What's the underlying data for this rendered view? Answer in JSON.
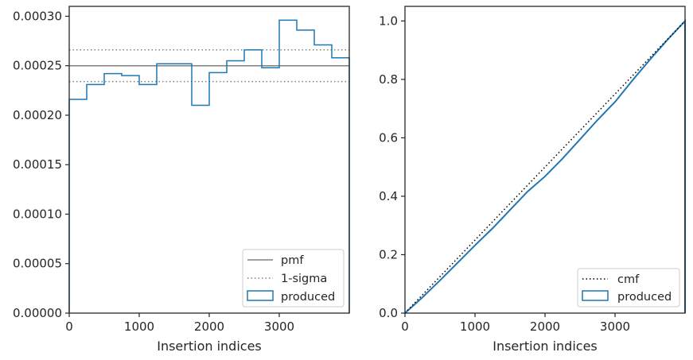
{
  "chart_data": [
    {
      "type": "histogram",
      "xlabel": "Insertion indices",
      "ylabel": "",
      "xlim": [
        0,
        4000
      ],
      "ylim": [
        0,
        0.00031
      ],
      "xticks": [
        "0",
        "1000",
        "2000",
        "3000"
      ],
      "xtick_values": [
        0,
        1000,
        2000,
        3000
      ],
      "yticks": [
        "0.00000",
        "0.00005",
        "0.00010",
        "0.00015",
        "0.00020",
        "0.00025",
        "0.00030"
      ],
      "ytick_values": [
        0,
        5e-05,
        0.0001,
        0.00015,
        0.0002,
        0.00025,
        0.0003
      ],
      "bin_edges": [
        0,
        250,
        500,
        750,
        1000,
        1250,
        1500,
        1750,
        2000,
        2250,
        2500,
        2750,
        3000,
        3250,
        3500,
        3750,
        4000
      ],
      "values": [
        0.000216,
        0.000231,
        0.000242,
        0.00024,
        0.000231,
        0.000252,
        0.000252,
        0.00021,
        0.000243,
        0.000255,
        0.000266,
        0.000248,
        0.000296,
        0.000286,
        0.000271,
        0.000258
      ],
      "pmf": 0.00025,
      "sigma_upper": 0.000266,
      "sigma_lower": 0.000234,
      "legend_position": "lower-right",
      "legend": [
        "pmf",
        "1-sigma",
        "produced"
      ],
      "colors": {
        "produced": "#1f77b4",
        "pmf": "#808080",
        "sigma": "#808080"
      }
    },
    {
      "type": "line",
      "xlabel": "Insertion indices",
      "ylabel": "",
      "xlim": [
        0,
        4000
      ],
      "ylim": [
        0,
        1.05
      ],
      "xticks": [
        "0",
        "1000",
        "2000",
        "3000"
      ],
      "xtick_values": [
        0,
        1000,
        2000,
        3000
      ],
      "yticks": [
        "0.0",
        "0.2",
        "0.4",
        "0.6",
        "0.8",
        "1.0"
      ],
      "ytick_values": [
        0,
        0.2,
        0.4,
        0.6,
        0.8,
        1.0
      ],
      "cmf": {
        "x": [
          0,
          4000
        ],
        "y": [
          0,
          1.0
        ]
      },
      "produced": {
        "x": [
          0,
          250,
          500,
          750,
          1000,
          1250,
          1500,
          1750,
          2000,
          2250,
          2500,
          2750,
          3000,
          3250,
          3500,
          3750,
          4000
        ],
        "y": [
          0,
          0.054,
          0.112,
          0.172,
          0.232,
          0.29,
          0.353,
          0.416,
          0.468,
          0.529,
          0.595,
          0.661,
          0.723,
          0.797,
          0.868,
          0.936,
          1.0
        ]
      },
      "legend_position": "lower-right",
      "legend": [
        "cmf",
        "produced"
      ],
      "colors": {
        "produced": "#1f77b4",
        "cmf": "#000000"
      }
    }
  ]
}
